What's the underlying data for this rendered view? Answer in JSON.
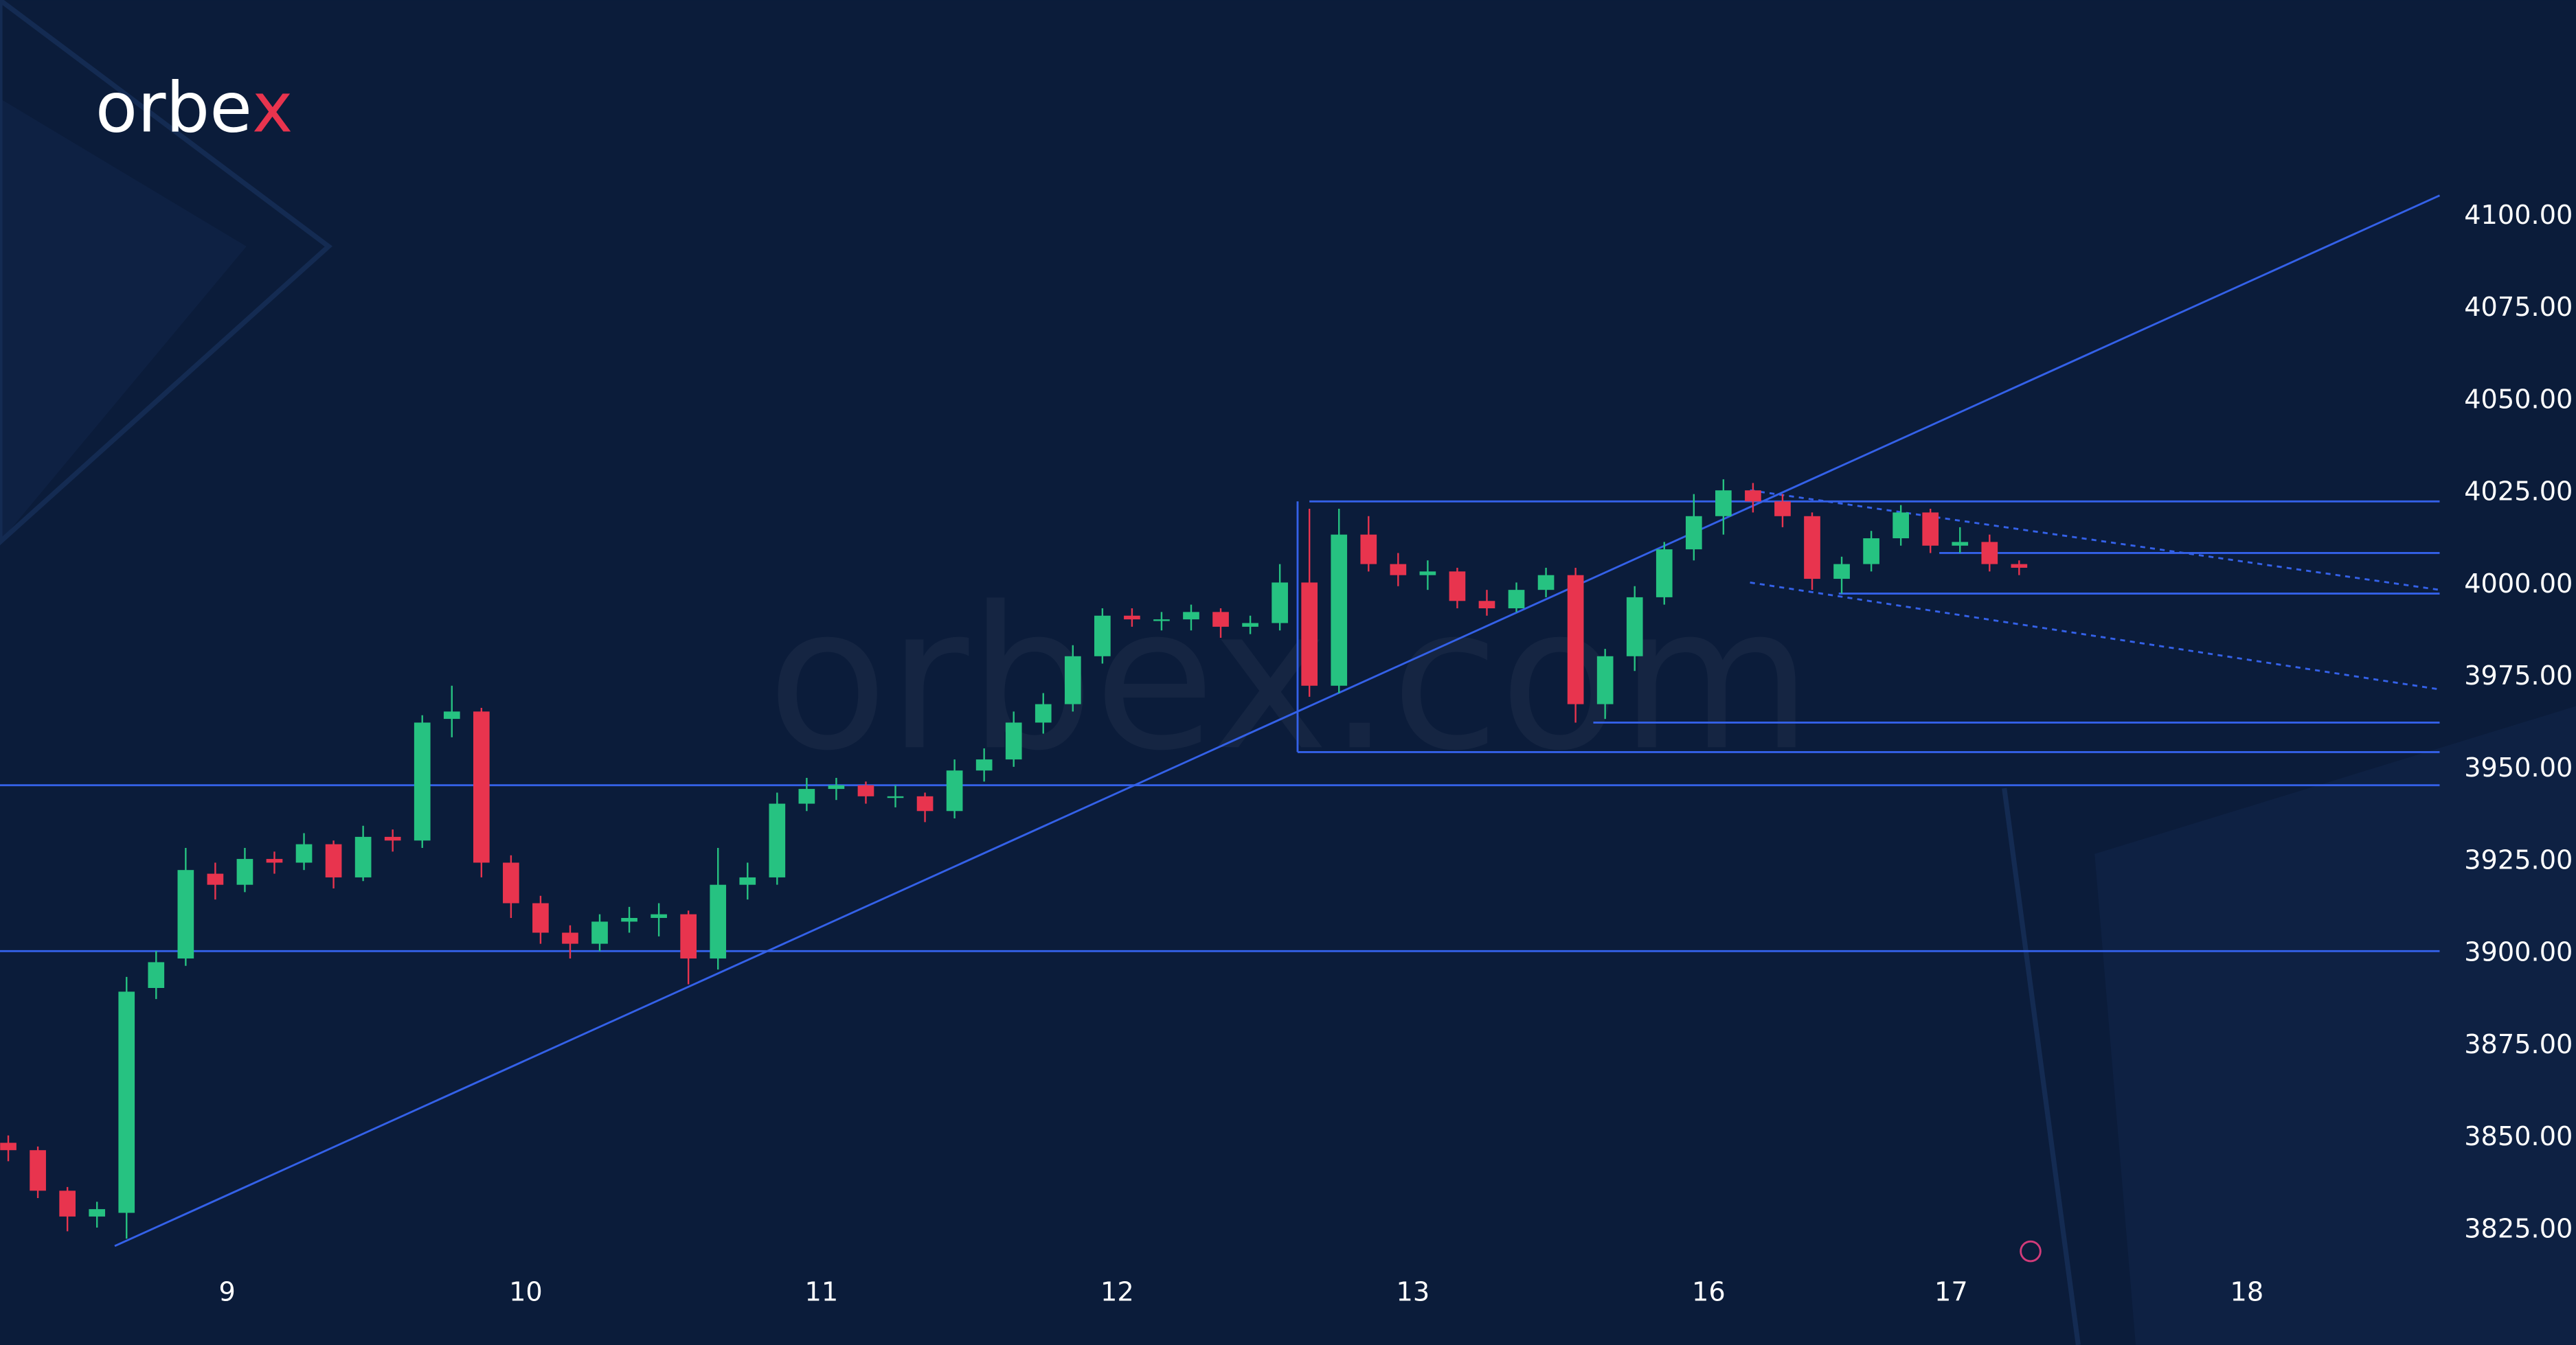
{
  "chart_data": {
    "type": "candlestick",
    "logo": "orbex",
    "watermark": "orbex.com",
    "x": [
      0,
      1,
      2,
      3,
      4,
      5,
      6,
      7,
      8,
      9,
      10,
      11,
      12,
      13,
      14,
      15,
      16,
      17,
      18,
      19,
      20,
      21,
      22,
      23,
      24,
      25,
      26,
      27,
      28,
      29,
      30,
      31,
      32,
      33,
      34,
      35,
      36,
      37,
      38,
      39,
      40,
      41,
      42,
      43,
      44,
      45,
      46,
      47,
      48,
      49,
      50,
      51,
      52,
      53,
      54,
      55,
      56,
      57,
      58,
      59,
      60,
      61,
      62,
      63,
      64,
      65,
      66,
      67,
      68
    ],
    "open": [
      3848,
      3846,
      3835,
      3828,
      3829,
      3890,
      3898,
      3921,
      3918,
      3925,
      3924,
      3929,
      3920,
      3931,
      3930,
      3963,
      3965,
      3924,
      3913,
      3905,
      3902,
      3908,
      3909,
      3910,
      3898,
      3918,
      3920,
      3940,
      3944,
      3945,
      3942,
      3942,
      3938,
      3949,
      3952,
      3962,
      3967,
      3980,
      3991,
      3990,
      3990,
      3992,
      3988,
      3989,
      4000,
      3972,
      4013,
      4005,
      4002,
      4003,
      3995,
      3993,
      3998,
      4002,
      3967,
      3980,
      3996,
      4009,
      4018,
      4025,
      4022,
      4018,
      4001,
      4005,
      4012,
      4019,
      4010,
      4011,
      4005
    ],
    "high": [
      3850,
      3847,
      3836,
      3832,
      3893,
      3900,
      3928,
      3924,
      3928,
      3927,
      3932,
      3930,
      3934,
      3933,
      3964,
      3972,
      3966,
      3926,
      3915,
      3907,
      3910,
      3912,
      3913,
      3911,
      3928,
      3924,
      3943,
      3947,
      3947,
      3946,
      3945,
      3943,
      3952,
      3955,
      3965,
      3970,
      3983,
      3993,
      3993,
      3992,
      3994,
      3993,
      3991,
      4005,
      4020,
      4020,
      4018,
      4008,
      4006,
      4004,
      3998,
      4000,
      4004,
      4004,
      3982,
      3999,
      4011,
      4024,
      4028,
      4027,
      4024,
      4019,
      4007,
      4014,
      4021,
      4020,
      4015,
      4013,
      4006
    ],
    "low": [
      3843,
      3833,
      3824,
      3825,
      3822,
      3887,
      3896,
      3914,
      3916,
      3921,
      3922,
      3917,
      3919,
      3927,
      3928,
      3958,
      3920,
      3909,
      3902,
      3898,
      3900,
      3905,
      3904,
      3891,
      3895,
      3914,
      3918,
      3938,
      3941,
      3940,
      3939,
      3935,
      3936,
      3946,
      3950,
      3959,
      3965,
      3978,
      3988,
      3987,
      3987,
      3985,
      3986,
      3987,
      3969,
      3970,
      4003,
      3999,
      3998,
      3993,
      3991,
      3992,
      3996,
      3962,
      3963,
      3976,
      3994,
      4006,
      4013,
      4019,
      4015,
      3998,
      3997,
      4003,
      4010,
      4008,
      4008,
      4003,
      4002
    ],
    "close": [
      3846,
      3835,
      3828,
      3830,
      3889,
      3897,
      3922,
      3918,
      3925,
      3924,
      3929,
      3920,
      3931,
      3930,
      3962,
      3965,
      3924,
      3913,
      3905,
      3902,
      3908,
      3909,
      3910,
      3898,
      3918,
      3920,
      3940,
      3944,
      3945,
      3942,
      3942,
      3938,
      3949,
      3952,
      3962,
      3967,
      3980,
      3991,
      3990,
      3990,
      3992,
      3988,
      3989,
      4000,
      3972,
      4013,
      4005,
      4002,
      4003,
      3995,
      3993,
      3998,
      4002,
      3967,
      3980,
      3996,
      4009,
      4018,
      4025,
      4022,
      4018,
      4001,
      4005,
      4012,
      4019,
      4010,
      4011,
      4005,
      4004
    ],
    "up_color": "#26c281",
    "down_color": "#e8344e",
    "line_color": "#3461e8",
    "xlim": [
      -0.28,
      82.22
    ],
    "xticks": [
      {
        "value": 7.4,
        "label": "9"
      },
      {
        "value": 17.5,
        "label": "10"
      },
      {
        "value": 27.5,
        "label": "11"
      },
      {
        "value": 37.5,
        "label": "12"
      },
      {
        "value": 47.5,
        "label": "13"
      },
      {
        "value": 57.5,
        "label": "16"
      },
      {
        "value": 65.7,
        "label": "17"
      },
      {
        "value": 75.7,
        "label": "18"
      }
    ],
    "ylim": [
      3815,
      4158
    ],
    "yticks": [
      {
        "value": 3825,
        "label": "3825.00"
      },
      {
        "value": 3850,
        "label": "3850.00"
      },
      {
        "value": 3875,
        "label": "3875.00"
      },
      {
        "value": 3900,
        "label": "3900.00"
      },
      {
        "value": 3925,
        "label": "3925.00"
      },
      {
        "value": 3950,
        "label": "3950.00"
      },
      {
        "value": 3975,
        "label": "3975.00"
      },
      {
        "value": 4000,
        "label": "4000.00"
      },
      {
        "value": 4025,
        "label": "4025.00"
      },
      {
        "value": 4050,
        "label": "4050.00"
      },
      {
        "value": 4075,
        "label": "4075.00"
      },
      {
        "value": 4100,
        "label": "4100.00"
      }
    ],
    "lines": [
      {
        "x": [
          -0.28,
          82.22
        ],
        "y": [
          3900,
          3900
        ],
        "style": "solid"
      },
      {
        "x": [
          -0.28,
          82.22
        ],
        "y": [
          3945,
          3945
        ],
        "style": "solid"
      },
      {
        "x": [
          43.6,
          82.22
        ],
        "y": [
          3954,
          3954
        ],
        "style": "solid"
      },
      {
        "x": [
          53.6,
          82.22
        ],
        "y": [
          3962,
          3962
        ],
        "style": "solid"
      },
      {
        "x": [
          61.9,
          82.22
        ],
        "y": [
          3997,
          3997
        ],
        "style": "solid"
      },
      {
        "x": [
          65.3,
          82.22
        ],
        "y": [
          4008,
          4008
        ],
        "style": "solid"
      },
      {
        "x": [
          44.0,
          82.22
        ],
        "y": [
          4022,
          4022
        ],
        "style": "solid"
      },
      {
        "x": [
          43.6,
          43.6
        ],
        "y": [
          3954,
          4022
        ],
        "style": "solid"
      },
      {
        "x": [
          3.6,
          82.22
        ],
        "y": [
          3820,
          4105
        ],
        "style": "solid"
      },
      {
        "x": [
          58.9,
          82.22
        ],
        "y": [
          4025,
          3998
        ],
        "style": "dashed"
      },
      {
        "x": [
          58.9,
          82.22
        ],
        "y": [
          4000,
          3971
        ],
        "style": "dashed"
      }
    ]
  }
}
